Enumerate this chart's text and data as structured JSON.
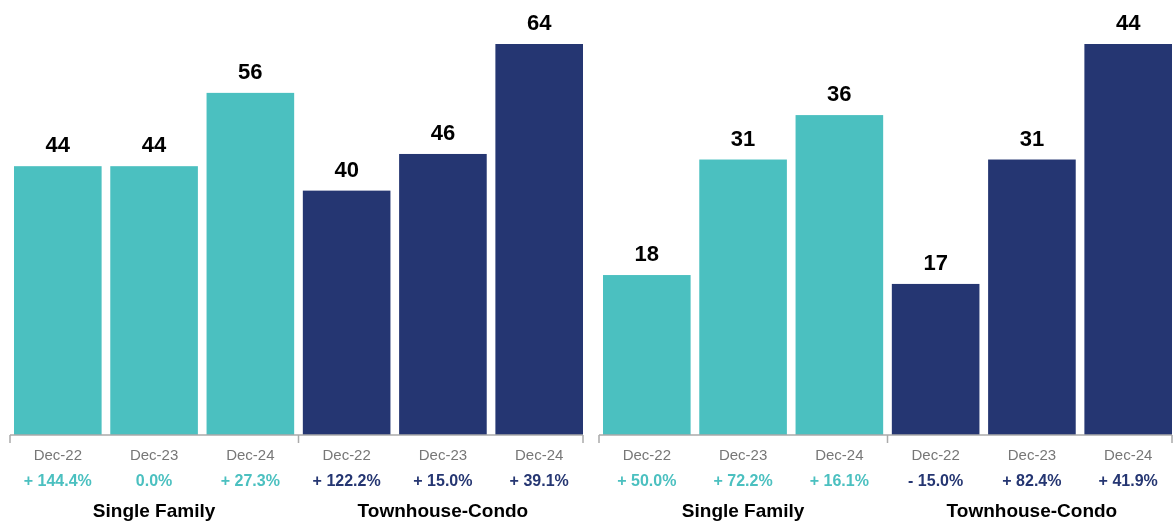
{
  "chart_data": [
    {
      "type": "bar",
      "categories": [
        "Dec-22",
        "Dec-23",
        "Dec-24",
        "Dec-22",
        "Dec-23",
        "Dec-24"
      ],
      "series": [
        {
          "color": "#4bc0c0",
          "values": [
            44,
            44,
            56,
            null,
            null,
            null
          ]
        },
        {
          "color": "#253672",
          "values": [
            null,
            null,
            null,
            40,
            46,
            64
          ]
        }
      ],
      "data_labels": true,
      "annotations": [
        "+ 144.4%",
        "0.0%",
        "+ 27.3%",
        "+ 122.2%",
        "+ 15.0%",
        "+ 39.1%",
        "Single Family",
        "Townhouse-Condo"
      ]
    },
    {
      "type": "bar",
      "categories": [
        "Dec-22",
        "Dec-23",
        "Dec-24",
        "Dec-22",
        "Dec-23",
        "Dec-24"
      ],
      "series": [
        {
          "color": "#4bc0c0",
          "values": [
            18,
            31,
            36,
            null,
            null,
            null
          ]
        },
        {
          "color": "#253672",
          "values": [
            null,
            null,
            null,
            17,
            31,
            44
          ]
        }
      ],
      "data_labels": true,
      "annotations": [
        "+ 50.0%",
        "+ 72.2%",
        "+ 16.1%",
        "- 15.0%",
        "+ 82.4%",
        "+ 41.9%",
        "Single Family",
        "Townhouse-Condo"
      ]
    }
  ]
}
